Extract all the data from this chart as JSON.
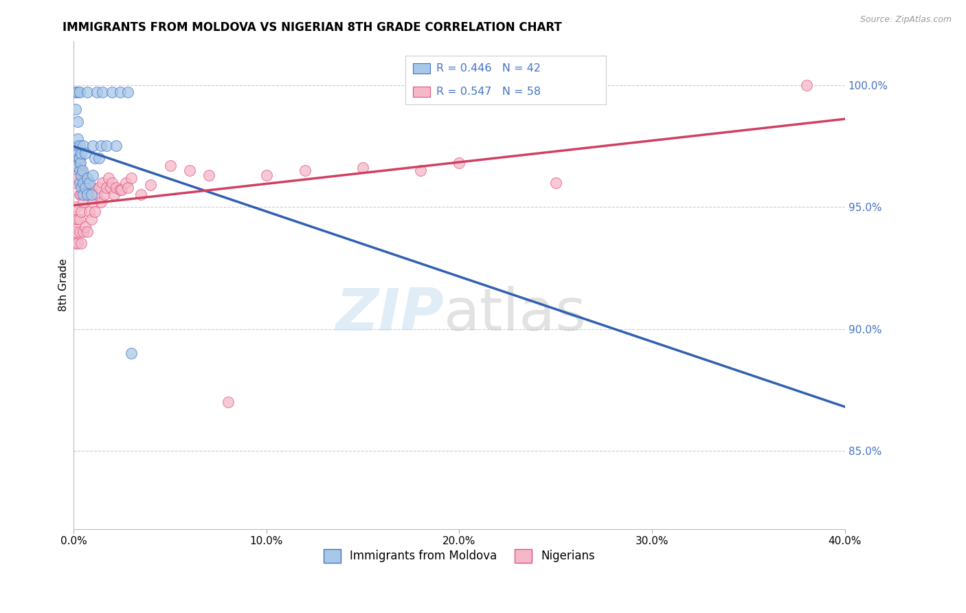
{
  "title": "IMMIGRANTS FROM MOLDOVA VS NIGERIAN 8TH GRADE CORRELATION CHART",
  "source": "Source: ZipAtlas.com",
  "ylabel": "8th Grade",
  "yaxis_labels": [
    "100.0%",
    "95.0%",
    "90.0%",
    "85.0%"
  ],
  "yaxis_values": [
    1.0,
    0.95,
    0.9,
    0.85
  ],
  "xmin": 0.0,
  "xmax": 0.4,
  "ymin": 0.818,
  "ymax": 1.018,
  "legend_blue_r": "0.446",
  "legend_blue_n": "42",
  "legend_pink_r": "0.547",
  "legend_pink_n": "58",
  "legend_label_blue": "Immigrants from Moldova",
  "legend_label_pink": "Nigerians",
  "color_blue_fill": "#a8c8e8",
  "color_blue_edge": "#4472C4",
  "color_pink_fill": "#f4b8c8",
  "color_pink_edge": "#e05080",
  "color_blue_line": "#3060b0",
  "color_pink_line": "#d04060",
  "color_axis_labels": "#4472C4",
  "color_grid": "#cccccc",
  "blue_x": [
    0.0005,
    0.001,
    0.001,
    0.0015,
    0.002,
    0.002,
    0.002,
    0.002,
    0.0025,
    0.003,
    0.003,
    0.003,
    0.003,
    0.003,
    0.0035,
    0.004,
    0.004,
    0.004,
    0.0045,
    0.005,
    0.005,
    0.005,
    0.006,
    0.006,
    0.007,
    0.007,
    0.007,
    0.008,
    0.009,
    0.01,
    0.01,
    0.011,
    0.012,
    0.013,
    0.014,
    0.015,
    0.017,
    0.02,
    0.022,
    0.024,
    0.028,
    0.03
  ],
  "blue_y": [
    0.967,
    0.99,
    0.997,
    0.975,
    0.972,
    0.978,
    0.985,
    0.997,
    0.97,
    0.96,
    0.965,
    0.97,
    0.975,
    0.997,
    0.968,
    0.958,
    0.963,
    0.972,
    0.965,
    0.955,
    0.96,
    0.975,
    0.958,
    0.972,
    0.955,
    0.962,
    0.997,
    0.96,
    0.955,
    0.963,
    0.975,
    0.97,
    0.997,
    0.97,
    0.975,
    0.997,
    0.975,
    0.997,
    0.975,
    0.997,
    0.997,
    0.89
  ],
  "pink_x": [
    0.0005,
    0.001,
    0.001,
    0.001,
    0.0015,
    0.002,
    0.002,
    0.002,
    0.003,
    0.003,
    0.003,
    0.003,
    0.004,
    0.004,
    0.004,
    0.004,
    0.005,
    0.005,
    0.005,
    0.006,
    0.006,
    0.007,
    0.007,
    0.008,
    0.008,
    0.009,
    0.009,
    0.01,
    0.011,
    0.012,
    0.013,
    0.014,
    0.015,
    0.016,
    0.017,
    0.018,
    0.019,
    0.02,
    0.021,
    0.022,
    0.024,
    0.025,
    0.027,
    0.028,
    0.03,
    0.035,
    0.04,
    0.05,
    0.06,
    0.07,
    0.08,
    0.1,
    0.12,
    0.15,
    0.18,
    0.2,
    0.25,
    0.38
  ],
  "pink_y": [
    0.935,
    0.94,
    0.945,
    0.96,
    0.95,
    0.935,
    0.945,
    0.962,
    0.94,
    0.945,
    0.955,
    0.968,
    0.935,
    0.948,
    0.955,
    0.965,
    0.94,
    0.952,
    0.96,
    0.942,
    0.958,
    0.94,
    0.955,
    0.948,
    0.958,
    0.945,
    0.958,
    0.952,
    0.948,
    0.955,
    0.958,
    0.952,
    0.96,
    0.955,
    0.958,
    0.962,
    0.958,
    0.96,
    0.955,
    0.958,
    0.957,
    0.957,
    0.96,
    0.958,
    0.962,
    0.955,
    0.959,
    0.967,
    0.965,
    0.963,
    0.87,
    0.963,
    0.965,
    0.966,
    0.965,
    0.968,
    0.96,
    1.0
  ]
}
